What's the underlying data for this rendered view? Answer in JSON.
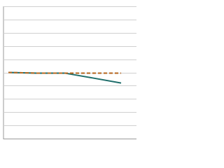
{
  "chart_data": {
    "type": "line",
    "categories": [
      null,
      null,
      null,
      null,
      null
    ],
    "series": [
      {
        "color": "#1f6e6b",
        "dash": false,
        "values": [
          5.0,
          4.95,
          4.95,
          4.58,
          4.2
        ]
      },
      {
        "color": "#b5651d",
        "dash": true,
        "values": [
          5.0,
          4.95,
          4.95,
          4.95,
          4.95
        ]
      }
    ],
    "ylim": [
      0,
      10
    ],
    "yticks": [
      0,
      1,
      2,
      3,
      4,
      5,
      6,
      7,
      8,
      9,
      10
    ],
    "grid": true
  }
}
